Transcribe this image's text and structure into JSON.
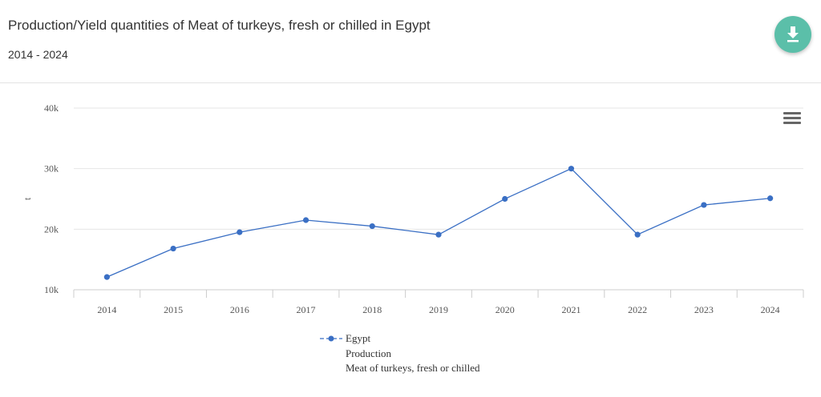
{
  "header": {
    "title": "Production/Yield quantities of Meat of turkeys, fresh or chilled in Egypt",
    "subtitle": "2014 - 2024"
  },
  "icons": {
    "download": "download-icon",
    "menu": "hamburger-menu-icon"
  },
  "colors": {
    "accent": "#5bbfa9",
    "series": "#3a6fc4"
  },
  "legend": {
    "name": "Egypt",
    "element": "Production",
    "item": "Meat of turkeys, fresh or chilled"
  },
  "chart_data": {
    "type": "line",
    "title": "Production/Yield quantities of Meat of turkeys, fresh or chilled in Egypt",
    "subtitle": "2014 - 2024",
    "xlabel": "",
    "ylabel": "t",
    "categories": [
      "2014",
      "2015",
      "2016",
      "2017",
      "2018",
      "2019",
      "2020",
      "2021",
      "2022",
      "2023",
      "2024"
    ],
    "ylim": [
      10000,
      40000
    ],
    "yticks": [
      {
        "value": 10000,
        "label": "10k"
      },
      {
        "value": 20000,
        "label": "20k"
      },
      {
        "value": 30000,
        "label": "30k"
      },
      {
        "value": 40000,
        "label": "40k"
      }
    ],
    "grid": true,
    "legend_position": "bottom",
    "series": [
      {
        "name": "Egypt",
        "values": [
          12100,
          16800,
          19500,
          21500,
          20500,
          19100,
          25000,
          30000,
          19100,
          24000,
          25100
        ]
      }
    ]
  }
}
